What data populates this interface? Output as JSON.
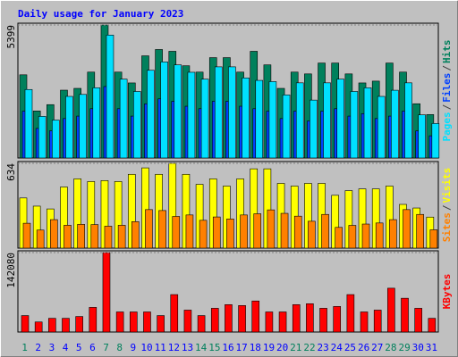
{
  "chart_data": [
    {
      "type": "bar",
      "title": "Daily usage for January 2023",
      "separator": "/",
      "series": [
        {
          "name": "Hits",
          "color": "#00805c",
          "values": [
            3376,
            1908,
            2165,
            2753,
            2826,
            3487,
            5399,
            3487,
            3046,
            4147,
            4404,
            4331,
            3743,
            3487,
            4074,
            4074,
            3487,
            4331,
            3780,
            2826,
            3487,
            3413,
            3854,
            3854,
            3413,
            3046,
            3120,
            3854,
            3487,
            2202,
            1762
          ]
        },
        {
          "name": "Files",
          "color": "#0040ff",
          "values": [
            1900,
            1200,
            1100,
            1600,
            1700,
            2000,
            2900,
            2000,
            1700,
            2200,
            2400,
            2300,
            2100,
            2000,
            2300,
            2300,
            2100,
            2000,
            1900,
            1600,
            1900,
            1500,
            1900,
            2000,
            1700,
            1800,
            1600,
            1700,
            1900,
            1100,
            900
          ]
        },
        {
          "name": "Pages",
          "color": "#00e0ff",
          "values": [
            2780,
            1690,
            1540,
            2500,
            2580,
            2850,
            4990,
            3200,
            2700,
            3560,
            3900,
            3780,
            3480,
            3200,
            3700,
            3700,
            3250,
            3150,
            3100,
            2560,
            3050,
            2350,
            3050,
            3200,
            2700,
            2850,
            2500,
            2750,
            3050,
            1750,
            1400
          ]
        }
      ],
      "ylim": [
        0,
        5399
      ],
      "yticks": [
        5399
      ]
    },
    {
      "type": "bar",
      "series": [
        {
          "name": "Visits",
          "color": "#ffff00",
          "values": [
            375,
            314,
            293,
            457,
            518,
            498,
            505,
            498,
            552,
            600,
            552,
            634,
            552,
            477,
            518,
            464,
            518,
            593,
            593,
            484,
            464,
            484,
            484,
            395,
            430,
            443,
            443,
            464,
            327,
            300,
            232
          ]
        },
        {
          "name": "Sites",
          "color": "#ff8000",
          "values": [
            186,
            135,
            213,
            171,
            178,
            176,
            164,
            171,
            198,
            288,
            281,
            237,
            248,
            208,
            233,
            218,
            248,
            257,
            286,
            260,
            239,
            201,
            252,
            155,
            170,
            180,
            188,
            213,
            288,
            252,
            137
          ]
        }
      ],
      "ylim": [
        0,
        634
      ],
      "yticks": [
        634
      ]
    },
    {
      "type": "bar",
      "categories": [
        "1",
        "2",
        "3",
        "4",
        "5",
        "6",
        "7",
        "8",
        "9",
        "10",
        "11",
        "12",
        "13",
        "14",
        "15",
        "16",
        "17",
        "18",
        "19",
        "20",
        "21",
        "22",
        "23",
        "24",
        "25",
        "26",
        "27",
        "28",
        "29",
        "30",
        "31"
      ],
      "weekend": [
        true,
        false,
        false,
        false,
        false,
        false,
        true,
        true,
        false,
        false,
        false,
        false,
        false,
        true,
        true,
        false,
        false,
        false,
        false,
        false,
        true,
        true,
        false,
        false,
        false,
        false,
        false,
        true,
        true,
        false,
        false
      ],
      "series": [
        {
          "name": "KBytes",
          "color": "#ff0000",
          "values": [
            29394,
            17963,
            24495,
            24495,
            27761,
            44091,
            142080,
            35926,
            35926,
            35926,
            29394,
            66953,
            39192,
            29394,
            42458,
            48990,
            47357,
            55522,
            35926,
            35926,
            48990,
            50623,
            42458,
            45724,
            66953,
            35926,
            39192,
            78384,
            60421,
            42458,
            24495
          ]
        }
      ],
      "ylim": [
        0,
        142080
      ],
      "yticks": [
        142080
      ]
    }
  ]
}
